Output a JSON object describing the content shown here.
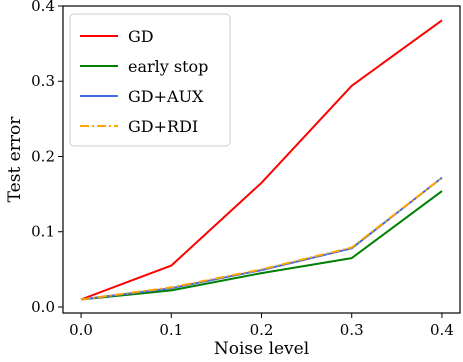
{
  "chart_data": {
    "type": "line",
    "xlabel": "Noise level",
    "ylabel": "Test error",
    "x": [
      0.0,
      0.1,
      0.2,
      0.3,
      0.4
    ],
    "xlim": [
      -0.02,
      0.42
    ],
    "ylim": [
      -0.008,
      0.4
    ],
    "xticks": [
      "0.0",
      "0.1",
      "0.2",
      "0.3",
      "0.4"
    ],
    "yticks": [
      "0.0",
      "0.1",
      "0.2",
      "0.3",
      "0.4"
    ],
    "xtick_values": [
      0.0,
      0.1,
      0.2,
      0.3,
      0.4
    ],
    "ytick_values": [
      0.0,
      0.1,
      0.2,
      0.3,
      0.4
    ],
    "grid": false,
    "legend_position": "top-left",
    "series": [
      {
        "name": "GD",
        "color": "#ff0000",
        "style": "solid",
        "values": [
          0.01,
          0.055,
          0.165,
          0.294,
          0.381
        ]
      },
      {
        "name": "early stop",
        "color": "#008000",
        "style": "solid",
        "values": [
          0.01,
          0.022,
          0.045,
          0.065,
          0.154
        ]
      },
      {
        "name": "GD+AUX",
        "color": "#4169e1",
        "style": "solid",
        "values": [
          0.01,
          0.025,
          0.049,
          0.078,
          0.172
        ]
      },
      {
        "name": "GD+RDI",
        "color": "#ffa500",
        "style": "dashdot",
        "values": [
          0.01,
          0.026,
          0.05,
          0.079,
          0.172
        ]
      }
    ]
  }
}
